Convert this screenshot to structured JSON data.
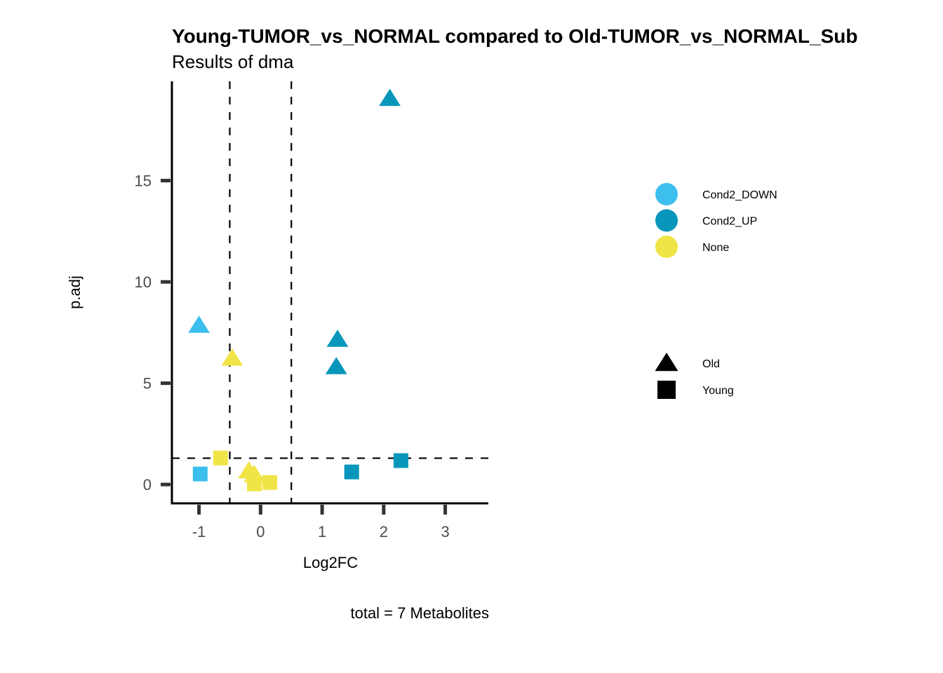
{
  "chart_data": {
    "type": "scatter",
    "title": "Young-TUMOR_vs_NORMAL compared to Old-TUMOR_vs_NORMAL_Sub",
    "subtitle": "Results of dma",
    "xlabel": "Log2FC",
    "ylabel": "p.adj",
    "caption": "total = 7 Metabolites",
    "xlim": [
      -1.44,
      3.7
    ],
    "ylim": [
      -0.93,
      19.9
    ],
    "x_ticks": [
      -1,
      0,
      1,
      2,
      3
    ],
    "x_tick_labels": [
      "-1",
      "0",
      "1",
      "2",
      "3"
    ],
    "y_ticks": [
      0,
      5,
      10,
      15
    ],
    "y_tick_labels": [
      "0",
      "5",
      "10",
      "15"
    ],
    "grid": false,
    "reference_lines": {
      "vertical": [
        -0.5,
        0.5
      ],
      "horizontal": [
        1.3
      ]
    },
    "color_legend": {
      "placement": "right",
      "entries": [
        {
          "label": "Cond2_DOWN",
          "color": "#3cbfee"
        },
        {
          "label": "Cond2_UP",
          "color": "#0897bb"
        },
        {
          "label": "None",
          "color": "#f1e447"
        }
      ]
    },
    "shape_legend": {
      "placement": "right",
      "entries": [
        {
          "label": "Old",
          "shape": "triangle"
        },
        {
          "label": "Young",
          "shape": "square"
        }
      ]
    },
    "series": [
      {
        "name": "Old",
        "shape": "triangle",
        "points": [
          {
            "x": 2.1,
            "y": 19.05,
            "group": "Cond2_UP"
          },
          {
            "x": -1.0,
            "y": 7.85,
            "group": "Cond2_DOWN"
          },
          {
            "x": -0.46,
            "y": 6.23,
            "group": "None"
          },
          {
            "x": 1.25,
            "y": 7.16,
            "group": "Cond2_UP"
          },
          {
            "x": 1.23,
            "y": 5.81,
            "group": "Cond2_UP"
          },
          {
            "x": -0.19,
            "y": 0.66,
            "group": "None"
          },
          {
            "x": -0.1,
            "y": 0.48,
            "group": "None"
          }
        ]
      },
      {
        "name": "Young",
        "shape": "square",
        "points": [
          {
            "x": -0.98,
            "y": 0.52,
            "group": "Cond2_DOWN"
          },
          {
            "x": -0.65,
            "y": 1.31,
            "group": "None"
          },
          {
            "x": -0.1,
            "y": 0.03,
            "group": "None"
          },
          {
            "x": 0.15,
            "y": 0.1,
            "group": "None"
          },
          {
            "x": 1.48,
            "y": 0.62,
            "group": "Cond2_UP"
          },
          {
            "x": 2.28,
            "y": 1.18,
            "group": "Cond2_UP"
          }
        ]
      }
    ]
  }
}
